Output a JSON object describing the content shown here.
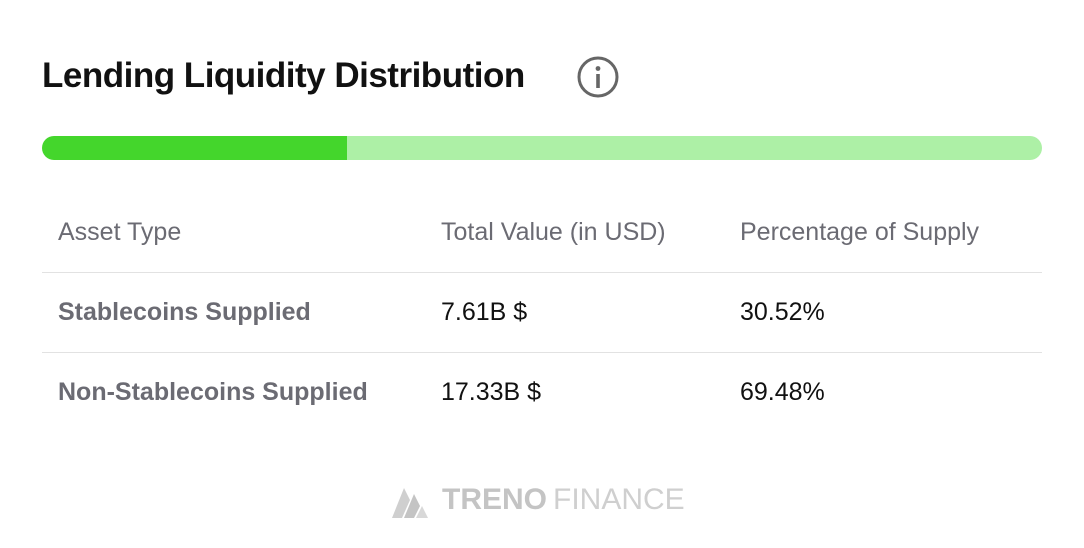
{
  "header": {
    "title": "Lending Liquidity Distribution"
  },
  "bar": {
    "values": [
      30.52,
      69.48
    ],
    "colors": [
      "#44d62c",
      "#adf0a6"
    ]
  },
  "table": {
    "columns": [
      "Asset Type",
      "Total Value (in USD)",
      "Percentage of Supply"
    ],
    "rows": [
      [
        "Stablecoins Supplied",
        "7.61B $",
        "30.52%"
      ],
      [
        "Non-Stablecoins Supplied",
        "17.33B $",
        "69.48%"
      ]
    ]
  },
  "footer": {
    "brand_bold": "TRENO",
    "brand_light": "FINANCE"
  }
}
